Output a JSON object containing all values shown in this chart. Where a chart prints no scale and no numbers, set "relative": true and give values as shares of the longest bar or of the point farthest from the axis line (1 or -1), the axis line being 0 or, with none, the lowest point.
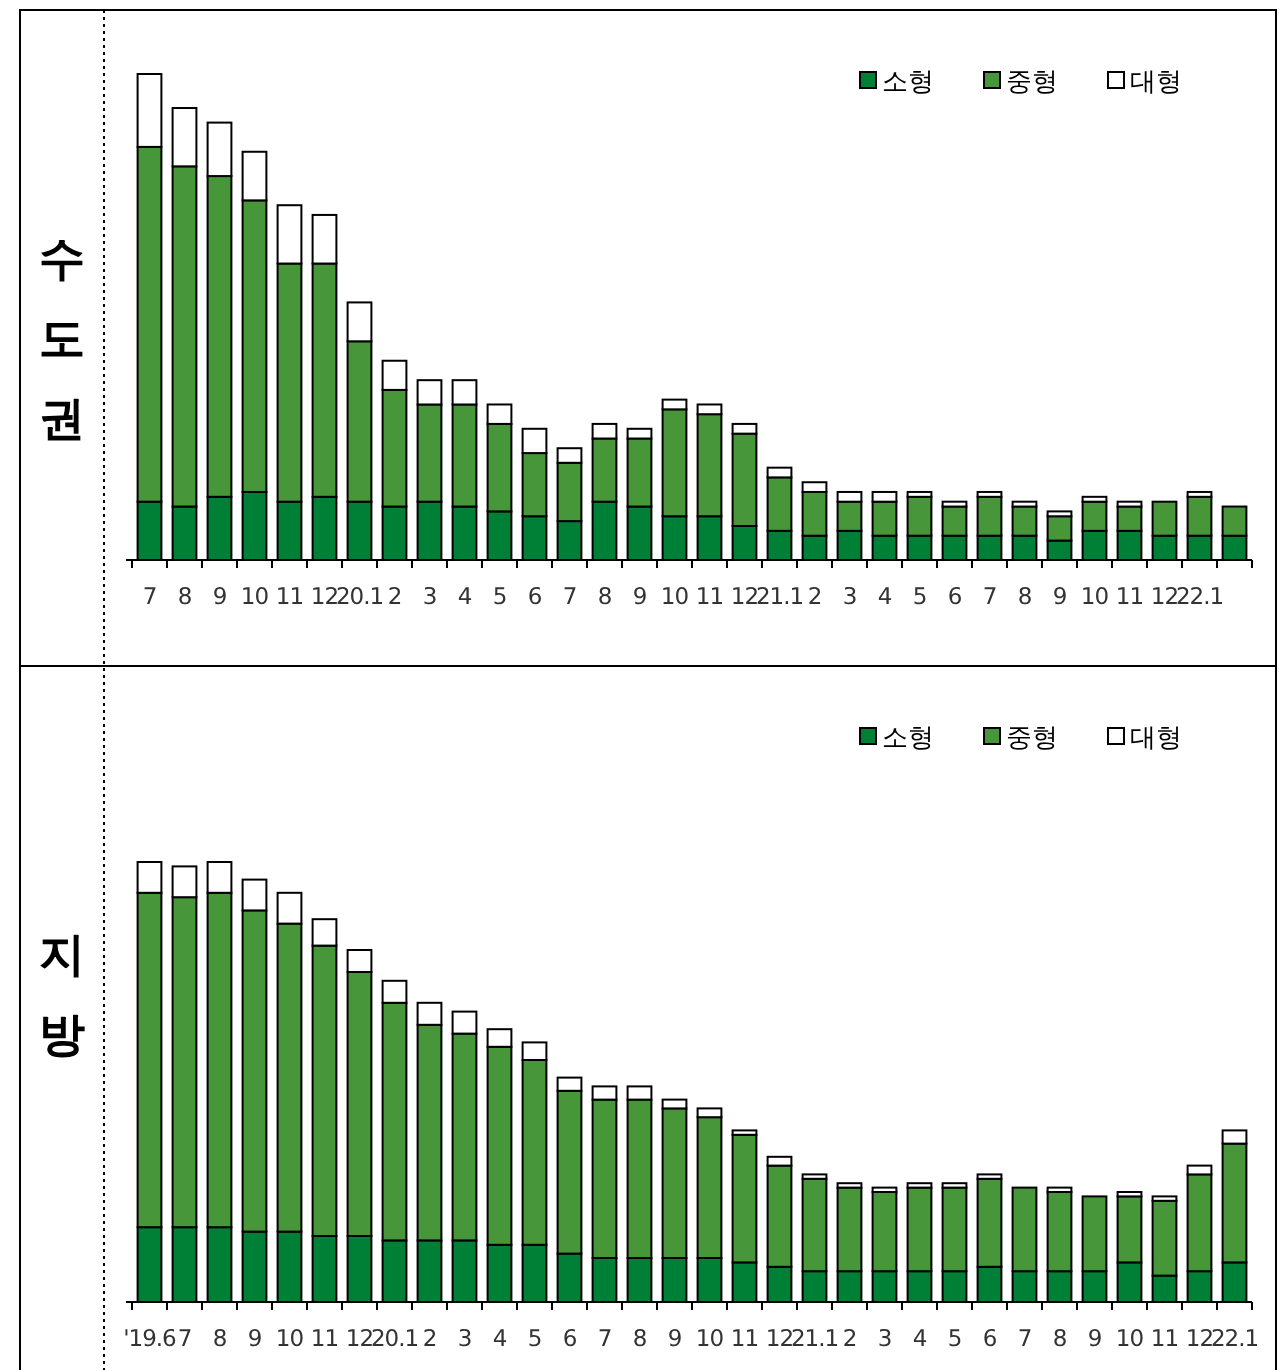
{
  "chart_data": [
    {
      "type": "bar",
      "title": "수도권",
      "stacked": true,
      "relative": true,
      "legend": "top right",
      "categories": [
        "7",
        "8",
        "9",
        "10",
        "11",
        "12",
        "20.1",
        "2",
        "3",
        "4",
        "5",
        "6",
        "7",
        "8",
        "9",
        "10",
        "11",
        "12",
        "21.1",
        "2",
        "3",
        "4",
        "5",
        "6",
        "7",
        "8",
        "9",
        "10",
        "11",
        "12",
        "22.1",
        null
      ],
      "series": [
        {
          "name": "소형",
          "color": "#007f37",
          "values": [
            0.12,
            0.11,
            0.13,
            0.14,
            0.12,
            0.13,
            0.12,
            0.11,
            0.12,
            0.11,
            0.1,
            0.09,
            0.08,
            0.12,
            0.11,
            0.09,
            0.09,
            0.07,
            0.06,
            0.05,
            0.06,
            0.05,
            0.05,
            0.05,
            0.05,
            0.05,
            0.04,
            0.06,
            0.06,
            0.05,
            0.05,
            0.05
          ]
        },
        {
          "name": "중형",
          "color": "#48963a",
          "values": [
            0.73,
            0.7,
            0.66,
            0.6,
            0.49,
            0.48,
            0.33,
            0.24,
            0.2,
            0.21,
            0.18,
            0.13,
            0.12,
            0.13,
            0.14,
            0.22,
            0.21,
            0.19,
            0.11,
            0.09,
            0.06,
            0.07,
            0.08,
            0.06,
            0.08,
            0.06,
            0.05,
            0.06,
            0.05,
            0.07,
            0.08,
            0.06
          ]
        },
        {
          "name": "대형",
          "color": "#ffffff",
          "values": [
            0.15,
            0.12,
            0.11,
            0.1,
            0.12,
            0.1,
            0.08,
            0.06,
            0.05,
            0.05,
            0.04,
            0.05,
            0.03,
            0.03,
            0.02,
            0.02,
            0.02,
            0.02,
            0.02,
            0.02,
            0.02,
            0.02,
            0.01,
            0.01,
            0.01,
            0.01,
            0.01,
            0.01,
            0.01,
            0.0,
            0.01,
            0
          ]
        }
      ]
    },
    {
      "type": "bar",
      "title": "지방",
      "stacked": true,
      "relative": true,
      "legend": "top right",
      "categories": [
        "'19.6",
        "7",
        "8",
        "9",
        "10",
        "11",
        "12",
        "20.1",
        "2",
        "3",
        "4",
        "5",
        "6",
        "7",
        "8",
        "9",
        "10",
        "11",
        "12",
        "21.1",
        "2",
        "3",
        "4",
        "5",
        "6",
        "7",
        "8",
        "9",
        "10",
        "11",
        "12",
        "22.1"
      ],
      "series": [
        {
          "name": "소형",
          "color": "#007f37",
          "values": [
            0.17,
            0.17,
            0.17,
            0.16,
            0.16,
            0.15,
            0.15,
            0.14,
            0.14,
            0.14,
            0.13,
            0.13,
            0.11,
            0.1,
            0.1,
            0.1,
            0.1,
            0.09,
            0.08,
            0.07,
            0.07,
            0.07,
            0.07,
            0.07,
            0.08,
            0.07,
            0.07,
            0.07,
            0.09,
            0.06,
            0.07,
            0.09
          ]
        },
        {
          "name": "중형",
          "color": "#48963a",
          "values": [
            0.76,
            0.75,
            0.76,
            0.73,
            0.7,
            0.66,
            0.6,
            0.54,
            0.49,
            0.47,
            0.45,
            0.42,
            0.37,
            0.36,
            0.36,
            0.34,
            0.32,
            0.29,
            0.23,
            0.21,
            0.19,
            0.18,
            0.19,
            0.19,
            0.2,
            0.19,
            0.18,
            0.17,
            0.15,
            0.17,
            0.22,
            0.27
          ]
        },
        {
          "name": "대형",
          "color": "#ffffff",
          "values": [
            0.07,
            0.07,
            0.07,
            0.07,
            0.07,
            0.06,
            0.05,
            0.05,
            0.05,
            0.05,
            0.04,
            0.04,
            0.03,
            0.03,
            0.03,
            0.02,
            0.02,
            0.01,
            0.02,
            0.01,
            0.01,
            0.01,
            0.01,
            0.01,
            0.01,
            0.0,
            0.01,
            0.0,
            0.01,
            0.01,
            0.02,
            0.03
          ]
        }
      ]
    }
  ]
}
